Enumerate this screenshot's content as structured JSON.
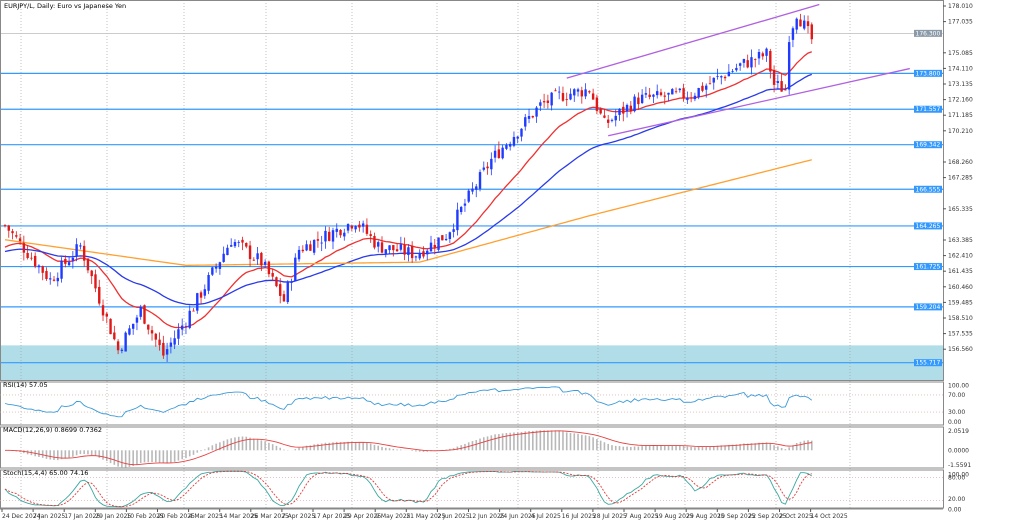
{
  "header": {
    "title": "EURJPY/L, Daily: Euro vs Japanese Yen"
  },
  "colors": {
    "bull": "#1f3bff",
    "bear": "#e01818",
    "ma_fast": "#f03030",
    "ma_mid": "#2a3ae8",
    "ma_slow": "#ffa030",
    "channel": "#b060e0",
    "level": "#3399ff",
    "zone": "#b0dde8",
    "rsi": "#3a9ad9",
    "stoch_main": "#3aa8a0",
    "stoch_signal": "#e03a3a",
    "macd_hist": "#b8b8b8",
    "macd_signal": "#e84040"
  },
  "chart_data": {
    "type": "candlestick",
    "symbol": "EURJPY",
    "timeframe": "Daily",
    "y_axis_ticks": [
      "178.010",
      "177.035",
      "175.085",
      "174.110",
      "173.135",
      "172.160",
      "171.185",
      "170.210",
      "168.260",
      "167.285",
      "165.335",
      "163.385",
      "162.410",
      "161.435",
      "160.460",
      "159.485",
      "158.510",
      "157.535",
      "156.560"
    ],
    "ylim": [
      154.6,
      178.4
    ],
    "current_price": {
      "value": 176.3,
      "label": "176.300"
    },
    "horizontal_levels": [
      {
        "value": 173.8,
        "label": "173.800"
      },
      {
        "value": 171.557,
        "label": "171.557"
      },
      {
        "value": 169.342,
        "label": "169.342"
      },
      {
        "value": 166.555,
        "label": "166.555"
      },
      {
        "value": 164.265,
        "label": "164.265"
      },
      {
        "value": 161.725,
        "label": "161.725"
      },
      {
        "value": 159.204,
        "label": "159.204"
      },
      {
        "value": 155.717,
        "label": "155.717"
      }
    ],
    "support_zone": [
      154.6,
      156.8
    ],
    "close_keypoints": [
      [
        0,
        164.3
      ],
      [
        12,
        160.9
      ],
      [
        20,
        163.0
      ],
      [
        30,
        156.5
      ],
      [
        36,
        159.0
      ],
      [
        42,
        156.2
      ],
      [
        48,
        158.4
      ],
      [
        60,
        163.4
      ],
      [
        68,
        162.0
      ],
      [
        74,
        159.6
      ],
      [
        78,
        162.8
      ],
      [
        93,
        164.6
      ],
      [
        99,
        163.0
      ],
      [
        109,
        162.5
      ],
      [
        117,
        163.7
      ],
      [
        129,
        168.4
      ],
      [
        142,
        171.8
      ],
      [
        147,
        172.4
      ],
      [
        155,
        172.8
      ],
      [
        159,
        170.6
      ],
      [
        168,
        172.2
      ],
      [
        182,
        172.5
      ],
      [
        195,
        174.3
      ],
      [
        202,
        175.0
      ],
      [
        204,
        173.1
      ],
      [
        207,
        172.8
      ],
      [
        208,
        176.2
      ],
      [
        210,
        177.6
      ],
      [
        214,
        175.9
      ]
    ],
    "ma_slow_keypoints": [
      [
        0,
        163.4
      ],
      [
        48,
        161.8
      ],
      [
        110,
        162.0
      ],
      [
        155,
        164.9
      ],
      [
        214,
        168.4
      ]
    ],
    "channel_upper": [
      [
        149,
        173.5
      ],
      [
        216,
        178.1
      ]
    ],
    "channel_lower": [
      [
        160,
        169.9
      ],
      [
        240,
        174.1
      ]
    ],
    "x_tick_labels": [
      "24 Dec 2024",
      "7 Jan 2025",
      "17 Jan 2025",
      "29 Jan 2025",
      "10 Feb 2025",
      "20 Feb 2025",
      "4 Mar 2025",
      "14 Mar 2025",
      "26 Mar 2025",
      "7 Apr 2025",
      "17 Apr 2025",
      "29 Apr 2025",
      "9 May 2025",
      "21 May 2025",
      "2 Jun 2025",
      "12 Jun 2025",
      "24 Jun 2025",
      "4 Jul 2025",
      "16 Jul 2025",
      "28 Jul 2025",
      "7 Aug 2025",
      "19 Aug 2025",
      "29 Aug 2025",
      "10 Sep 2025",
      "22 Sep 2025",
      "2 Oct 2025",
      "14 Oct 2025"
    ],
    "rsi": {
      "label": "RSI(14) 57.05",
      "ticks": [
        "100.00",
        "70.00",
        "30.00",
        "0.00"
      ],
      "levels": [
        70,
        30
      ]
    },
    "macd": {
      "label": "MACD(12,26,9) 0.8699 0.7362",
      "ticks": [
        "2.0519",
        "0.0000",
        "-1.5591"
      ],
      "ylim": [
        -1.5591,
        2.0519
      ]
    },
    "stoch": {
      "label": "Stoch(15,4,4) 65.00 74.16",
      "ticks": [
        "100.00",
        "80.00",
        "20.00",
        "0.00"
      ],
      "levels": [
        80,
        20
      ]
    }
  }
}
